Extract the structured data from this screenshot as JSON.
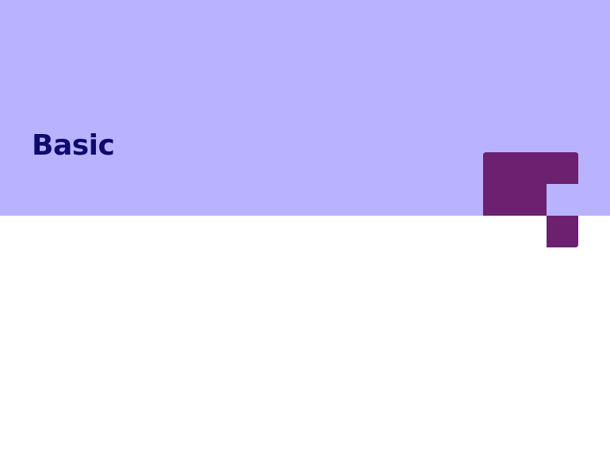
{
  "hero": {
    "title": "Basic",
    "background_color": "#b9b3ff",
    "title_color": "#0f0a6e"
  },
  "brand_mark": {
    "icon": "pixel-block-logo-icon",
    "color": "#6b2170"
  }
}
